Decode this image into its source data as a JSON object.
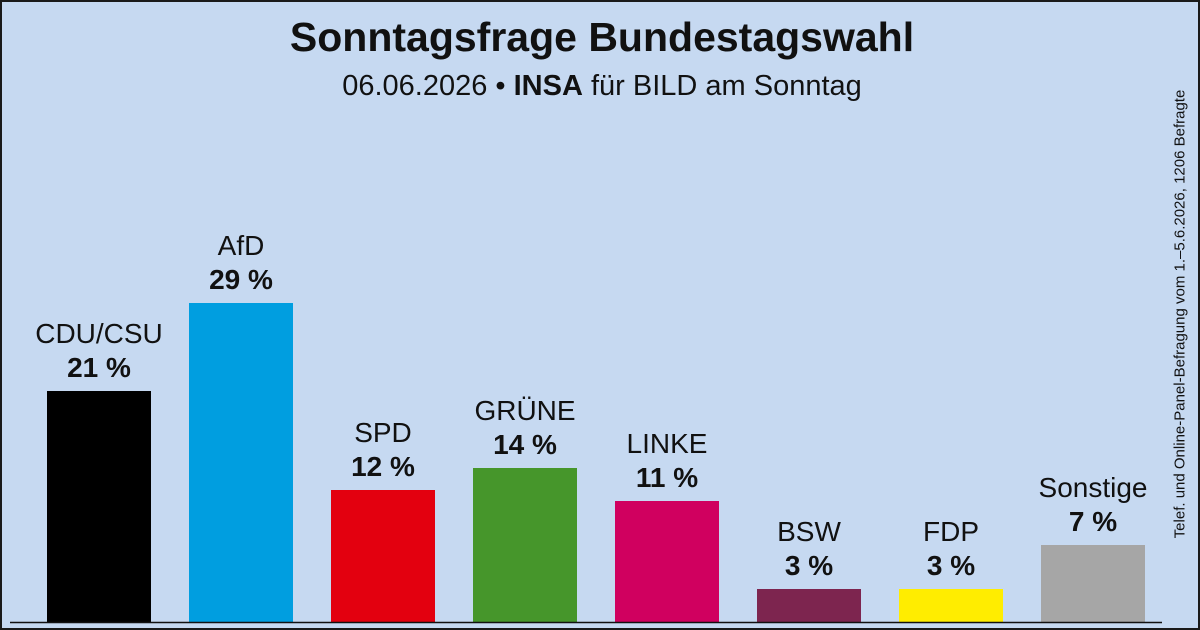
{
  "colors": {
    "background": "#c6d9f1",
    "border": "#1a1a1a",
    "baseline": "#111111"
  },
  "chart_data": {
    "type": "bar",
    "title": "Sonntagsfrage Bundestagswahl",
    "subtitle": {
      "date": "06.06.2026",
      "separator": "•",
      "institute": "INSA",
      "client": "für BILD am Sonntag"
    },
    "side_note": "Telef. und Online-Panel-Befragung vom 1.–5.6.2026, 1206 Befragte",
    "unit": "%",
    "ylim": [
      0,
      35
    ],
    "grid": false,
    "legend": "none",
    "categories": [
      "CDU/CSU",
      "AfD",
      "SPD",
      "GRÜNE",
      "LINKE",
      "BSW",
      "FDP",
      "Sonstige"
    ],
    "values": [
      21,
      29,
      12,
      14,
      11,
      3,
      3,
      7
    ],
    "value_labels": [
      "21 %",
      "29 %",
      "12 %",
      "14 %",
      "11 %",
      "3 %",
      "3 %",
      "7 %"
    ],
    "colors": [
      "#000000",
      "#009ee0",
      "#e3000f",
      "#46962b",
      "#d0005f",
      "#7d254f",
      "#ffed00",
      "#a6a6a6"
    ]
  }
}
